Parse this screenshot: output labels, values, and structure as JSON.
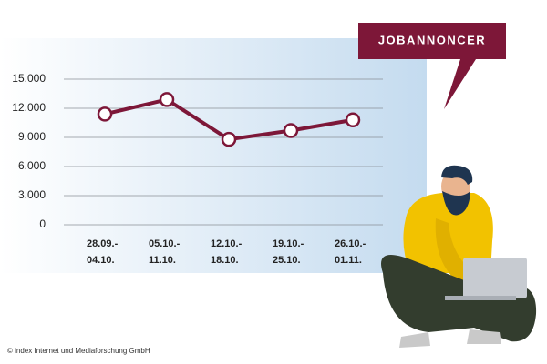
{
  "chart_data": {
    "type": "line",
    "callout": "JOBANNONCER",
    "source": "© index Internet und Mediaforschung GmbH",
    "categories": [
      "28.09.-\n04.10.",
      "05.10.-\n11.10.",
      "12.10.-\n18.10.",
      "19.10.-\n25.10.",
      "26.10.-\n01.11."
    ],
    "values": [
      11400,
      12900,
      8800,
      9700,
      10800
    ],
    "color": "#7d1738",
    "ylim": [
      0,
      15000
    ],
    "yticks": [
      0,
      {
        "value": 3000,
        "label": "3.000"
      },
      {
        "value": 6000,
        "label": "6.000"
      },
      {
        "value": 9000,
        "label": "9.000"
      },
      {
        "value": 12000,
        "label": "12.000"
      },
      {
        "value": 15000,
        "label": "15.000"
      }
    ],
    "grid": true
  }
}
